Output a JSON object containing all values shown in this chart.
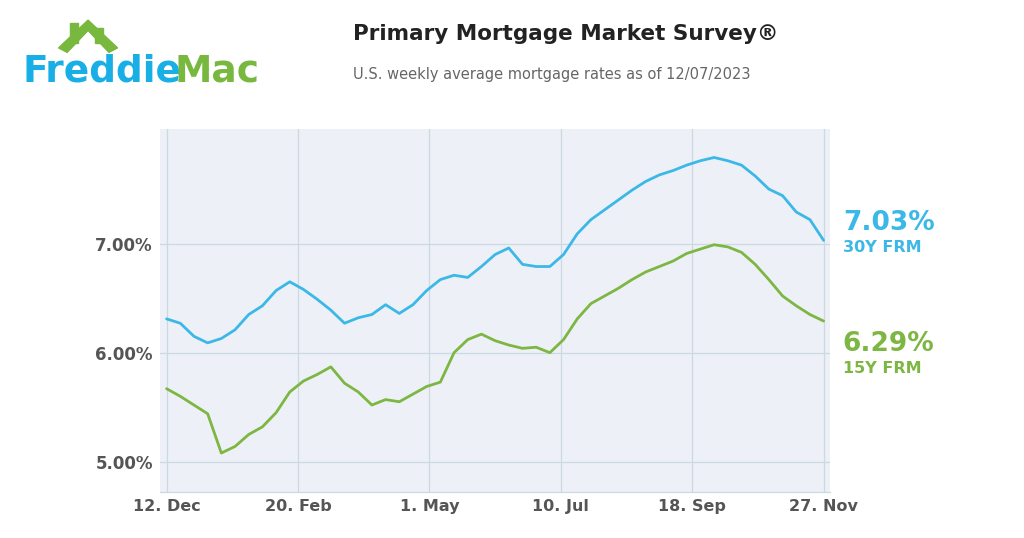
{
  "title": "Primary Mortgage Market Survey®",
  "subtitle": "U.S. weekly average mortgage rates as of 12/07/2023",
  "x_tick_labels": [
    "12. Dec",
    "20. Feb",
    "1. May",
    "10. Jul",
    "18. Sep",
    "27. Nov"
  ],
  "y_ticks": [
    5.0,
    6.0,
    7.0
  ],
  "ylim": [
    4.72,
    8.05
  ],
  "rate_30y": [
    6.31,
    6.27,
    6.15,
    6.09,
    6.13,
    6.21,
    6.35,
    6.43,
    6.57,
    6.65,
    6.58,
    6.49,
    6.39,
    6.27,
    6.32,
    6.35,
    6.44,
    6.36,
    6.44,
    6.57,
    6.67,
    6.71,
    6.69,
    6.79,
    6.9,
    6.96,
    6.81,
    6.79,
    6.79,
    6.9,
    7.09,
    7.22,
    7.31,
    7.4,
    7.49,
    7.57,
    7.63,
    7.67,
    7.72,
    7.76,
    7.79,
    7.76,
    7.72,
    7.62,
    7.5,
    7.44,
    7.29,
    7.22,
    7.03
  ],
  "rate_15y": [
    5.67,
    5.6,
    5.52,
    5.44,
    5.08,
    5.14,
    5.25,
    5.32,
    5.45,
    5.64,
    5.74,
    5.8,
    5.87,
    5.72,
    5.64,
    5.52,
    5.57,
    5.55,
    5.62,
    5.69,
    5.73,
    6.0,
    6.12,
    6.17,
    6.11,
    6.07,
    6.04,
    6.05,
    6.0,
    6.12,
    6.31,
    6.45,
    6.52,
    6.59,
    6.67,
    6.74,
    6.79,
    6.84,
    6.91,
    6.95,
    6.99,
    6.97,
    6.92,
    6.81,
    6.67,
    6.52,
    6.43,
    6.35,
    6.29
  ],
  "color_30y": "#3cb8e8",
  "color_15y": "#7db642",
  "label_30y_rate": "7.03%",
  "label_30y_name": "30Y FRM",
  "label_15y_rate": "6.29%",
  "label_15y_name": "15Y FRM",
  "bg_color": "#edf1f7",
  "freddie_blue": "#18aee6",
  "freddie_green": "#78b83e",
  "grid_color": "#cdd8e5",
  "tick_color": "#555555",
  "title_color": "#222222",
  "subtitle_color": "#666666"
}
